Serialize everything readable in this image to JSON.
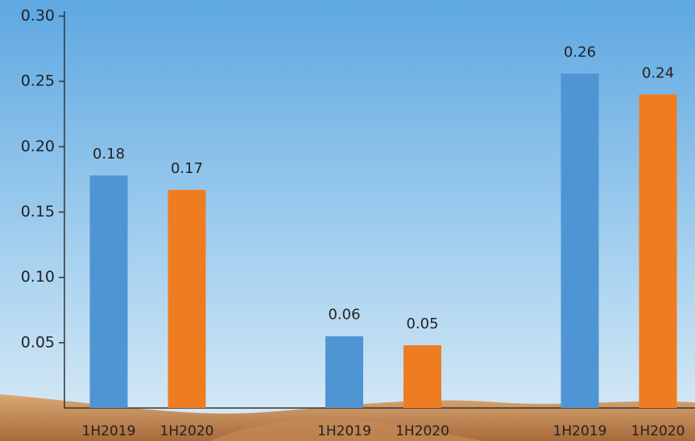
{
  "chart_data": {
    "type": "bar",
    "categories": [
      "1H2019",
      "1H2020",
      "1H2019",
      "1H2020",
      "1H2019",
      "1H2020"
    ],
    "values": [
      0.178,
      0.167,
      0.055,
      0.048,
      0.256,
      0.24
    ],
    "value_labels": [
      "0.18",
      "0.17",
      "0.06",
      "0.05",
      "0.26",
      "0.24"
    ],
    "colors": [
      "#4f95d4",
      "#ee7d22",
      "#4f95d4",
      "#ee7d22",
      "#4f95d4",
      "#ee7d22"
    ],
    "ylim": [
      0,
      0.3
    ],
    "yticks": [
      0.05,
      {
        "value": 0.1,
        "label": "0.10"
      },
      0.15,
      {
        "value": 0.2,
        "label": "0.20"
      },
      0.25,
      {
        "value": 0.3,
        "label": "0.30"
      }
    ]
  }
}
